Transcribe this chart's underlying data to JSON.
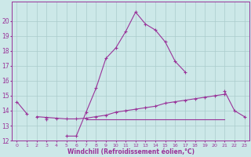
{
  "x": [
    0,
    1,
    2,
    3,
    4,
    5,
    6,
    7,
    8,
    9,
    10,
    11,
    12,
    13,
    14,
    15,
    16,
    17,
    18,
    19,
    20,
    21,
    22,
    23
  ],
  "line1": [
    14.6,
    13.8,
    null,
    13.4,
    null,
    12.3,
    12.3,
    13.9,
    15.5,
    17.5,
    18.2,
    19.3,
    20.6,
    19.8,
    19.4,
    18.6,
    17.3,
    16.6,
    null,
    null,
    null,
    15.3,
    14.0,
    13.6
  ],
  "line2": [
    null,
    null,
    13.6,
    13.55,
    13.5,
    13.45,
    13.45,
    13.5,
    13.6,
    13.7,
    13.9,
    14.0,
    14.1,
    14.2,
    14.3,
    14.5,
    14.6,
    14.7,
    14.8,
    14.9,
    15.0,
    15.1,
    null,
    null
  ],
  "line3": [
    null,
    null,
    null,
    null,
    null,
    null,
    null,
    13.4,
    13.4,
    13.4,
    13.4,
    13.4,
    13.4,
    13.4,
    13.4,
    13.4,
    13.4,
    13.4,
    13.4,
    13.4,
    13.4,
    13.4,
    null,
    null
  ],
  "line_color": "#993399",
  "bg_color": "#cce8e8",
  "grid_color": "#aacccc",
  "xlabel": "Windchill (Refroidissement éolien,°C)",
  "ylim": [
    12,
    21
  ],
  "xlim": [
    -0.5,
    23.5
  ],
  "yticks": [
    12,
    13,
    14,
    15,
    16,
    17,
    18,
    19,
    20
  ],
  "xticks": [
    0,
    1,
    2,
    3,
    4,
    5,
    6,
    7,
    8,
    9,
    10,
    11,
    12,
    13,
    14,
    15,
    16,
    17,
    18,
    19,
    20,
    21,
    22,
    23
  ]
}
